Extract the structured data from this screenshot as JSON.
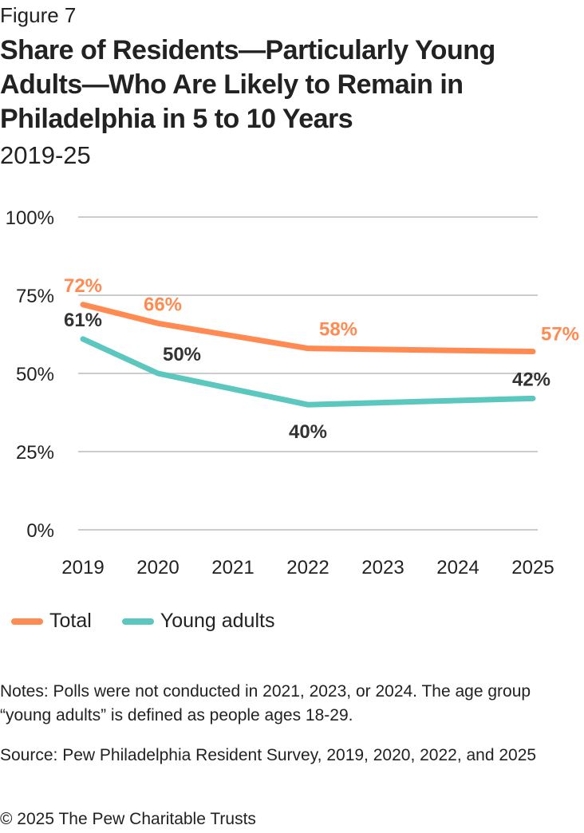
{
  "figure_label": "Figure 7",
  "title": "Share of Residents—Particularly Young Adults—Who Are Likely to Remain in Philadelphia in 5 to 10 Years",
  "subtitle": "2019-25",
  "colors": {
    "total": "#FF8A52",
    "young_adults": "#5BC7BE",
    "grid": "#BBBBBB",
    "label_dark": "#333333"
  },
  "chart_data": {
    "type": "line",
    "title": "Share of Residents—Particularly Young Adults—Who Are Likely to Remain in Philadelphia in 5 to 10 Years",
    "subtitle": "2019-25",
    "xlabel": "",
    "ylabel": "",
    "x": [
      2019,
      2020,
      2021,
      2022,
      2023,
      2024,
      2025
    ],
    "y_ticks": [
      "0%",
      "25%",
      "50%",
      "75%",
      "100%"
    ],
    "ylim": [
      0,
      100
    ],
    "grid": true,
    "legend_position": "bottom-left",
    "series": [
      {
        "name": "Total",
        "points": [
          {
            "x": 2019,
            "y": 72
          },
          {
            "x": 2020,
            "y": 66
          },
          {
            "x": 2022,
            "y": 58
          },
          {
            "x": 2025,
            "y": 57
          }
        ],
        "labels": [
          "72%",
          "66%",
          "58%",
          "57%"
        ]
      },
      {
        "name": "Young adults",
        "points": [
          {
            "x": 2019,
            "y": 61
          },
          {
            "x": 2020,
            "y": 50
          },
          {
            "x": 2022,
            "y": 40
          },
          {
            "x": 2025,
            "y": 42
          }
        ],
        "labels": [
          "61%",
          "50%",
          "40%",
          "42%"
        ]
      }
    ]
  },
  "notes": "Notes: Polls were not conducted in 2021, 2023, or 2024. The age group “young adults” is defined as people ages 18-29.",
  "source": "Source: Pew Philadelphia Resident Survey, 2019, 2020, 2022, and 2025",
  "copyright": "© 2025 The Pew Charitable Trusts"
}
